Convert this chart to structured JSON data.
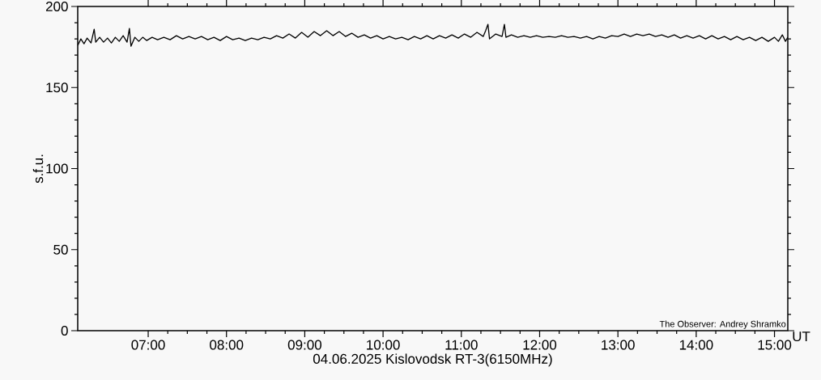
{
  "chart_data": {
    "type": "line",
    "xlabel": "04.06.2025 Kislovodsk RT-3(6150MHz)",
    "ylabel": "s.f.u.",
    "annotations": [
      "UT",
      "The Observer: Andrey Shramko"
    ],
    "xlim": [
      6.1,
      15.17
    ],
    "ylim": [
      0,
      200
    ],
    "xticks": [
      {
        "value": 7,
        "label": "07:00"
      },
      {
        "value": 8,
        "label": "08:00"
      },
      {
        "value": 9,
        "label": "09:00"
      },
      {
        "value": 10,
        "label": "10:00"
      },
      {
        "value": 11,
        "label": "11:00"
      },
      {
        "value": 12,
        "label": "12:00"
      },
      {
        "value": 13,
        "label": "13:00"
      },
      {
        "value": 14,
        "label": "14:00"
      },
      {
        "value": 15,
        "label": "15:00"
      }
    ],
    "yticks": [
      0,
      50,
      100,
      150,
      200
    ],
    "grid": false,
    "series": [
      {
        "color": "#000000",
        "x": [
          6.1,
          6.14,
          6.18,
          6.22,
          6.27,
          6.31,
          6.33,
          6.38,
          6.43,
          6.48,
          6.53,
          6.58,
          6.63,
          6.68,
          6.73,
          6.76,
          6.78,
          6.83,
          6.88,
          6.93,
          6.98,
          7.05,
          7.12,
          7.2,
          7.28,
          7.36,
          7.44,
          7.52,
          7.6,
          7.68,
          7.76,
          7.84,
          7.92,
          8.0,
          8.08,
          8.16,
          8.24,
          8.32,
          8.4,
          8.48,
          8.56,
          8.64,
          8.72,
          8.8,
          8.88,
          8.96,
          9.04,
          9.12,
          9.2,
          9.28,
          9.36,
          9.44,
          9.52,
          9.6,
          9.68,
          9.76,
          9.84,
          9.92,
          10.0,
          10.08,
          10.16,
          10.24,
          10.32,
          10.4,
          10.48,
          10.56,
          10.64,
          10.72,
          10.8,
          10.88,
          10.96,
          11.04,
          11.12,
          11.2,
          11.28,
          11.31,
          11.34,
          11.36,
          11.44,
          11.52,
          11.55,
          11.57,
          11.64,
          11.72,
          11.8,
          11.88,
          11.96,
          12.04,
          12.12,
          12.2,
          12.28,
          12.36,
          12.44,
          12.52,
          12.6,
          12.68,
          12.76,
          12.84,
          12.92,
          13.0,
          13.08,
          13.16,
          13.24,
          13.32,
          13.4,
          13.48,
          13.56,
          13.64,
          13.72,
          13.8,
          13.88,
          13.96,
          14.04,
          14.12,
          14.2,
          14.28,
          14.36,
          14.44,
          14.52,
          14.6,
          14.68,
          14.76,
          14.84,
          14.92,
          15.0,
          15.05,
          15.1,
          15.14,
          15.17
        ],
        "values": [
          176,
          180,
          177,
          180.5,
          177.5,
          186,
          178,
          181,
          178,
          180.5,
          177.5,
          181,
          178.5,
          182,
          178,
          186.5,
          175.5,
          181,
          178.5,
          181,
          179,
          181,
          179.5,
          181,
          179.5,
          182,
          180,
          181.5,
          180,
          181.5,
          179.5,
          181,
          179,
          181.5,
          179.5,
          180.5,
          179,
          180.5,
          179.5,
          181,
          180,
          182,
          180.5,
          183,
          180.5,
          184,
          181,
          184.5,
          182,
          185,
          182,
          184.5,
          181.5,
          183.5,
          181,
          182.5,
          180.5,
          182,
          180,
          181.5,
          180,
          181,
          179.5,
          181.5,
          180,
          182,
          180,
          182,
          180.5,
          182.5,
          180.5,
          183,
          181,
          184,
          181.5,
          185,
          189,
          180,
          183,
          181.5,
          189,
          181,
          182.5,
          181,
          182,
          181,
          182,
          181,
          181.5,
          181,
          182,
          181,
          181.5,
          180.5,
          181.5,
          180,
          181.5,
          180.5,
          182,
          181.5,
          183,
          181.5,
          183,
          182,
          183,
          181.5,
          182.5,
          181,
          182.5,
          180.5,
          182,
          180.5,
          182,
          180,
          182,
          180,
          181.5,
          179.5,
          181.5,
          179.5,
          181,
          179,
          181,
          178.5,
          181,
          178.5,
          182.5,
          178.5,
          181
        ]
      }
    ]
  }
}
